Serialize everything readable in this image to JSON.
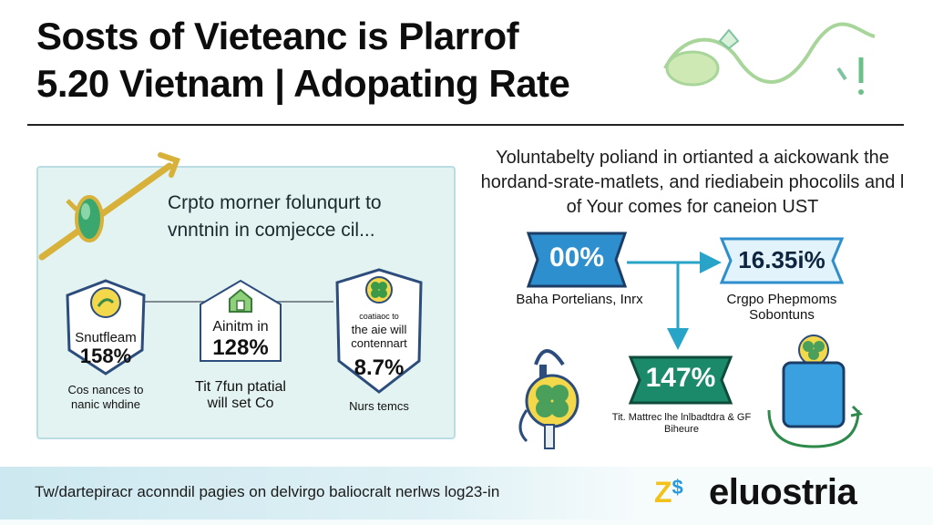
{
  "header": {
    "title_line1": "Sosts of Vieteanc is Plarrof",
    "title_line2": "5.20 Vietnam | Adopating Rate"
  },
  "left_panel": {
    "heading": "Crpto morner folunqurt to vnntnin in comjecce cil...",
    "cards": [
      {
        "label": "Snutfleam",
        "value": "158%",
        "caption": "Cos nances to nanic whdine"
      },
      {
        "label": "Ainitm in",
        "value": "128%",
        "caption": "Tit 7fun ptatial will set Co"
      },
      {
        "label": "the aie will contennart",
        "tag": "coatiaoc to",
        "value": "8.7%",
        "caption": "Nurs temcs"
      }
    ]
  },
  "right_section": {
    "paragraph": "Yoluntabelty poliand in ortianted a aickowank the hordand-srate-matlets, and riediabein phocolils and l of Your comes for caneion UST",
    "nodes": [
      {
        "value": "00%",
        "label": "Baha Portelians, Inrx"
      },
      {
        "value": "16.35i%",
        "label": "Crgpo Phepmoms Sobontuns"
      },
      {
        "value": "147%",
        "label": "Tit. Mattrec lhe lnlbadtdra & GF Biheure"
      }
    ]
  },
  "footer": {
    "text": "Tw/dartepiracr aconndil pagies on delvirgo baliocralt nerlws log23-in",
    "logo_mark": "Z$",
    "logo_text": "eluostria"
  },
  "colors": {
    "ribbon_blue": "#2e8fcf",
    "ribbon_green": "#1b8a6b",
    "panel_bg": "#e3f3f1",
    "shield_border": "#2c4d7c",
    "connector_arrow": "#27a4c8"
  }
}
